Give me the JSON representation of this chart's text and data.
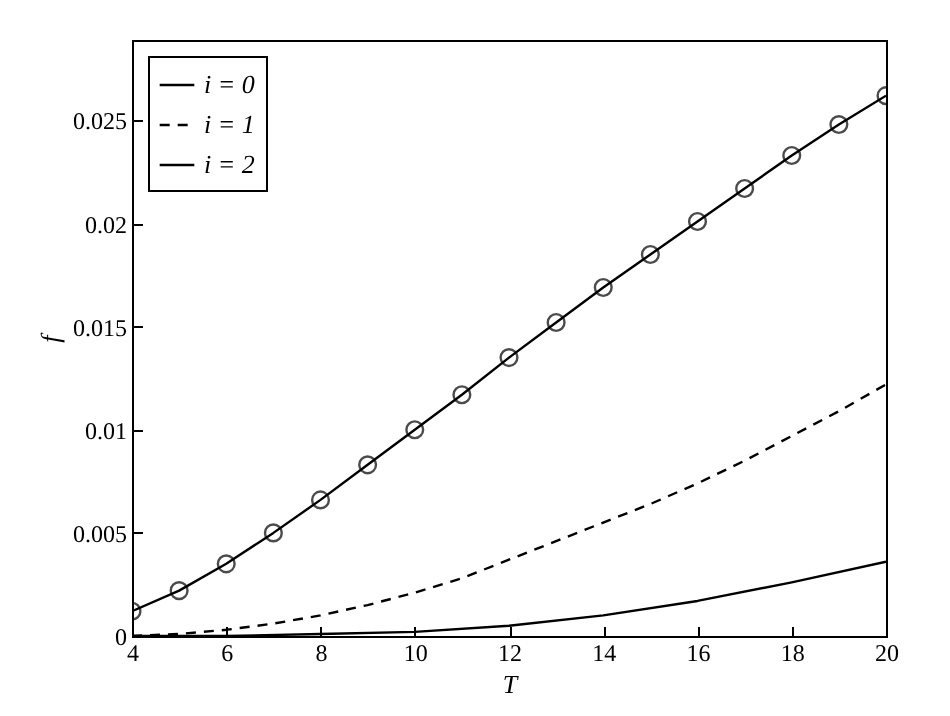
{
  "chart_data": {
    "type": "line",
    "xlabel": "T",
    "ylabel": "f",
    "xlim": [
      4,
      20
    ],
    "xticks": [
      4,
      6,
      8,
      10,
      12,
      14,
      16,
      18,
      20
    ],
    "ylim": [
      0,
      0.0289
    ],
    "yticks": [
      0,
      0.005,
      0.01,
      0.015,
      0.02,
      0.025
    ],
    "grid": false,
    "legend": "top left",
    "series": [
      {
        "name": "i = 0",
        "color": "#000000",
        "line_style": "solid",
        "marker": "none",
        "x": [
          4,
          6,
          8,
          10,
          12,
          14,
          16,
          18,
          20
        ],
        "values": [
          0,
          0,
          0.0001,
          0.0002,
          0.0005,
          0.001,
          0.0017,
          0.0026,
          0.0036
        ]
      },
      {
        "name": "i = 1",
        "color": "#000000",
        "line_style": "dashed",
        "marker": "none",
        "x": [
          4,
          5,
          6,
          7,
          8,
          9,
          10,
          11,
          12,
          13,
          14,
          15,
          16,
          17,
          18,
          19,
          20
        ],
        "values": [
          0,
          0.0001,
          0.0003,
          0.0006,
          0.001,
          0.0015,
          0.0021,
          0.0028,
          0.0037,
          0.0046,
          0.0055,
          0.0064,
          0.0074,
          0.0085,
          0.0097,
          0.0109,
          0.0122
        ]
      },
      {
        "name": "i = 2",
        "color": "#000000",
        "line_style": "solid",
        "marker": "circle",
        "x": [
          4,
          5,
          6,
          7,
          8,
          9,
          10,
          11,
          12,
          13,
          14,
          15,
          16,
          17,
          18,
          19,
          20
        ],
        "values": [
          0.0012,
          0.0022,
          0.0035,
          0.005,
          0.0066,
          0.0083,
          0.01,
          0.0117,
          0.0135,
          0.0152,
          0.0169,
          0.0185,
          0.0201,
          0.0217,
          0.0233,
          0.0248,
          0.0262
        ]
      }
    ]
  }
}
